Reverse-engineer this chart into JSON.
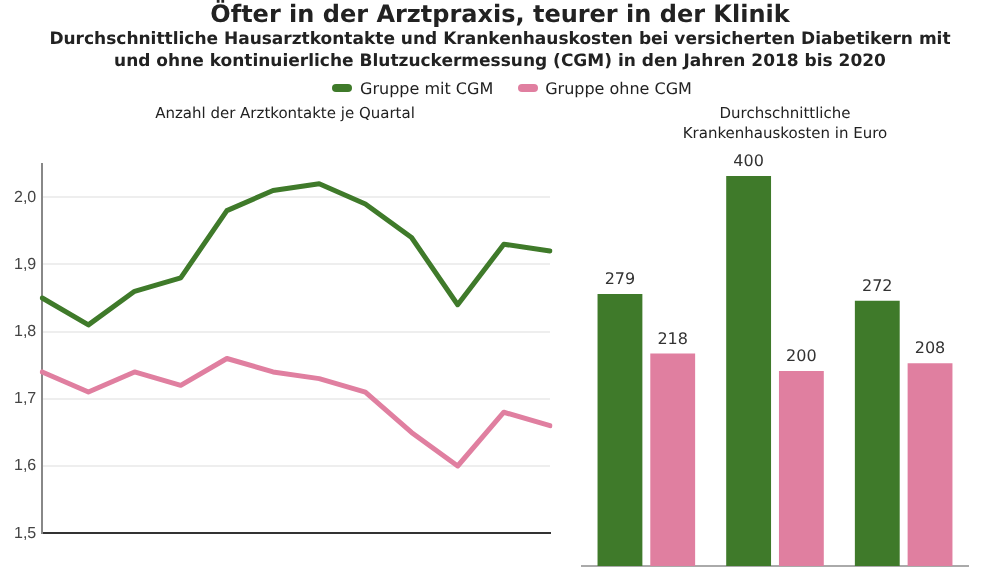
{
  "chart_data": [
    {
      "type": "line",
      "title": "Öfter in der Arztpraxis, teurer in der Klinik",
      "subtitle": "Durchschnittliche Hausarztkontakte und Krankenhauskosten bei versicherten Diabetikern mit und ohne kontinuierliche Blutzuckermessung (CGM) in den Jahren 2018 bis 2020",
      "ylabel": "Anzahl der Arztkontakte je Quartal",
      "categories": [
        null,
        null,
        null,
        null,
        null,
        null,
        null,
        null,
        null,
        null,
        null,
        null
      ],
      "series": [
        {
          "name": "Gruppe mit CGM",
          "color": "#3f7a2a",
          "values": [
            1.85,
            1.81,
            1.86,
            1.88,
            1.98,
            2.01,
            2.02,
            1.99,
            1.94,
            1.84,
            1.93,
            1.92
          ]
        },
        {
          "name": "Gruppe ohne CGM",
          "color": "#e07fa0",
          "values": [
            1.74,
            1.71,
            1.74,
            1.72,
            1.76,
            1.74,
            1.73,
            1.71,
            1.65,
            1.6,
            1.68,
            1.66
          ]
        }
      ],
      "ylim": [
        1.5,
        2.05
      ],
      "yticks": [
        {
          "value": 1.5,
          "label": "1,5"
        },
        {
          "value": 1.6,
          "label": "1,6"
        },
        {
          "value": 1.7,
          "label": "1,7"
        },
        {
          "value": 1.8,
          "label": "1,8"
        },
        {
          "value": 1.9,
          "label": "1,9"
        },
        {
          "value": 2.0,
          "label": "2,0"
        }
      ],
      "grid": "y",
      "legend": "top",
      "marker": "none",
      "line_style": "solid"
    },
    {
      "type": "bar",
      "ylabel": "Durchschnittliche Krankenhauskosten in Euro",
      "categories": [
        null,
        null,
        null
      ],
      "series": [
        {
          "color": "#3f7a2a",
          "values": [
            279,
            400,
            272
          ]
        },
        {
          "color": "#e07fa0",
          "values": [
            218,
            200,
            208
          ]
        }
      ],
      "data_labels": true
    }
  ]
}
